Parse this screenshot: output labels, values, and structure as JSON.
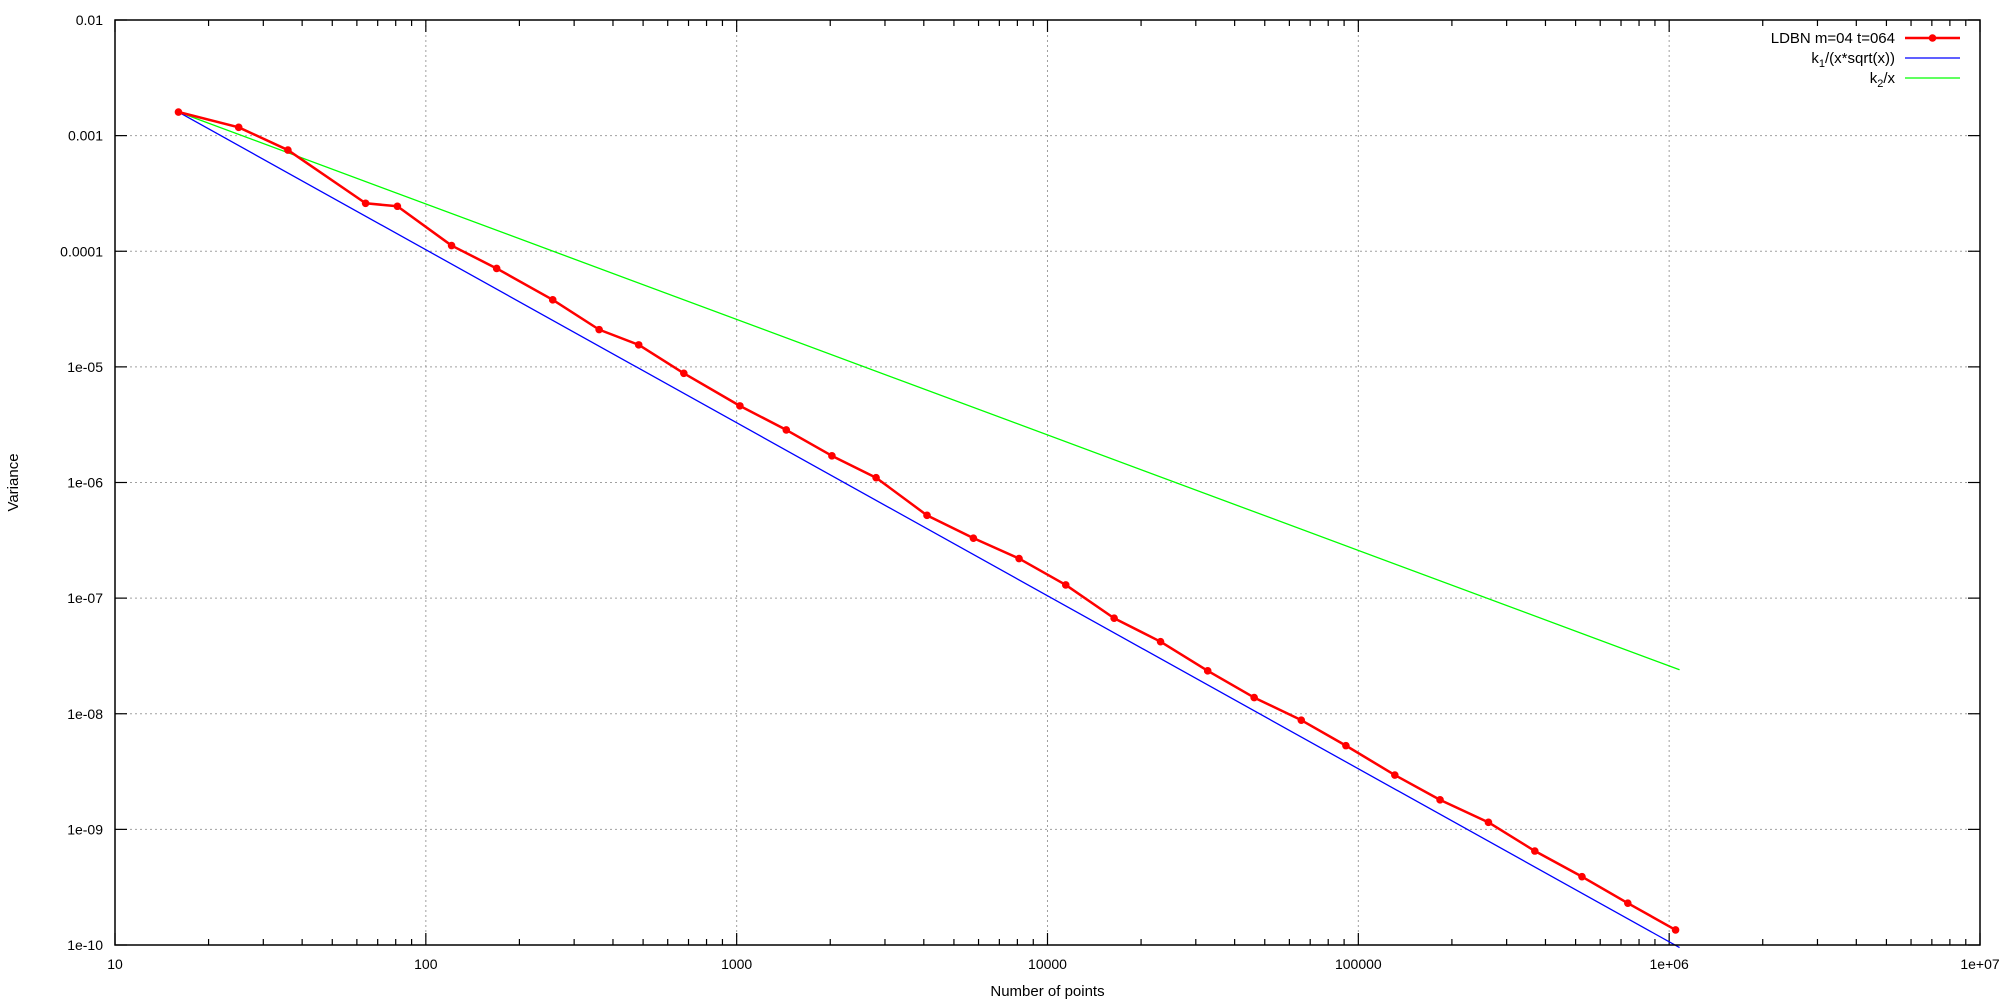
{
  "chart_data": {
    "type": "line",
    "title": "",
    "xlabel": "Number of points",
    "ylabel": "Variance",
    "xscale": "log",
    "yscale": "log",
    "xlim": [
      10,
      10000000
    ],
    "ylim": [
      1e-10,
      0.01
    ],
    "grid": true,
    "legend_position": "top-right",
    "x_ticks": [
      10,
      100,
      1000,
      10000,
      100000,
      1000000,
      10000000
    ],
    "x_tick_labels": [
      "10",
      "100",
      "1000",
      "10000",
      "100000",
      "1e+06",
      "1e+07"
    ],
    "y_ticks": [
      1e-10,
      1e-09,
      1e-08,
      1e-07,
      1e-06,
      1e-05,
      0.0001,
      0.001,
      0.01
    ],
    "y_tick_labels": [
      "1e-10",
      "1e-09",
      "1e-08",
      "1e-07",
      "1e-06",
      "1e-05",
      "0.0001",
      "0.001",
      "0.01"
    ],
    "series": [
      {
        "name": "LDBN m=04 t=064",
        "color": "#ff0000",
        "markers": true,
        "x": [
          16,
          25,
          36,
          64,
          81,
          121,
          169,
          256,
          361,
          484,
          676,
          1024,
          1444,
          2025,
          2809,
          4096,
          5776,
          8100,
          11449,
          16384,
          23104,
          32761,
          46225,
          65536,
          91204,
          131044,
          183184,
          262144,
          369664,
          524176,
          736164,
          1048576
        ],
        "y": [
          0.0016,
          0.00118,
          0.00075,
          0.00026,
          0.000245,
          0.000112,
          7.1e-05,
          3.8e-05,
          2.1e-05,
          1.55e-05,
          8.8e-06,
          4.6e-06,
          2.85e-06,
          1.7e-06,
          1.1e-06,
          5.2e-07,
          3.3e-07,
          2.2e-07,
          1.3e-07,
          6.7e-08,
          4.2e-08,
          2.35e-08,
          1.38e-08,
          8.8e-09,
          5.3e-09,
          2.95e-09,
          1.8e-09,
          1.15e-09,
          6.5e-10,
          3.9e-10,
          2.3e-10,
          1.35e-10
        ]
      },
      {
        "name": "k1/(x*sqrt(x))",
        "legend_label": {
          "prefix": "k",
          "sub": "1",
          "suffix": "/(x*sqrt(x))"
        },
        "color": "#0000ff",
        "markers": false,
        "x": [
          16,
          1080000
        ],
        "y": [
          0.0016,
          9.5e-11
        ]
      },
      {
        "name": "k2/x",
        "legend_label": {
          "prefix": "k",
          "sub": "2",
          "suffix": "/x"
        },
        "color": "#00ff00",
        "markers": false,
        "x": [
          16,
          1080000
        ],
        "y": [
          0.0016,
          2.4e-08
        ]
      }
    ]
  }
}
